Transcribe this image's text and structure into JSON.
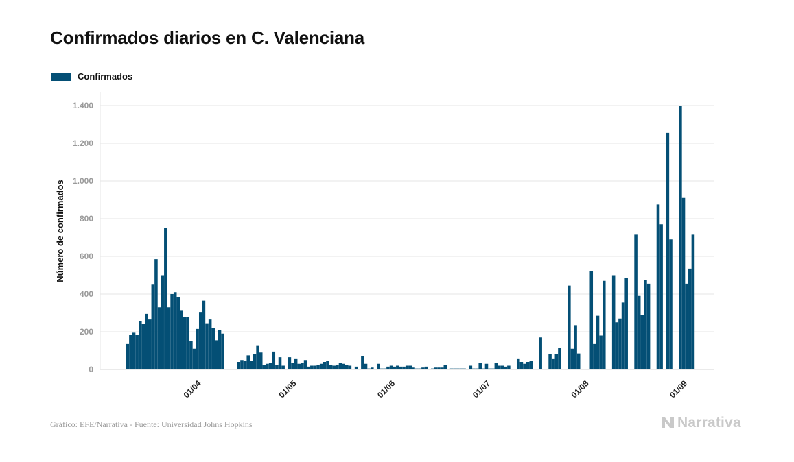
{
  "title": "Confirmados diarios en C. Valenciana",
  "legend": {
    "label": "Confirmados"
  },
  "colors": {
    "bar": "#044f75",
    "grid": "#e6e6e6",
    "brand": "#c9c9c9"
  },
  "source": "Gráfico: EFE/Narrativa - Fuente: Universidad Johns Hopkins",
  "brand": {
    "name": "Narrativa",
    "icon": "narrativa-logo-icon"
  },
  "chart_data": {
    "type": "bar",
    "title": "Confirmados diarios en C. Valenciana",
    "ylabel": "Número de confirmados",
    "xlabel": "",
    "ylim": [
      0,
      1400
    ],
    "grid": true,
    "legend_position": "top-left",
    "yticks": [
      0,
      200,
      400,
      600,
      800,
      1000,
      1200,
      1400
    ],
    "ytick_labels": [
      "0",
      "200",
      "400",
      "600",
      "800",
      "1.000",
      "1.200",
      "1.400"
    ],
    "start_date": "2020-03-10",
    "xtick_labels": [
      {
        "day": 22,
        "label": "01/04"
      },
      {
        "day": 52,
        "label": "01/05"
      },
      {
        "day": 83,
        "label": "01/06"
      },
      {
        "day": 113,
        "label": "01/07"
      },
      {
        "day": 144,
        "label": "01/08"
      },
      {
        "day": 175,
        "label": "01/09"
      }
    ],
    "series": [
      {
        "name": "Confirmados",
        "values": [
          135,
          185,
          195,
          185,
          255,
          240,
          295,
          265,
          450,
          585,
          330,
          500,
          750,
          330,
          400,
          410,
          385,
          315,
          280,
          280,
          150,
          110,
          215,
          305,
          365,
          245,
          265,
          220,
          155,
          210,
          190,
          null,
          null,
          null,
          null,
          40,
          50,
          45,
          75,
          45,
          80,
          125,
          90,
          25,
          30,
          35,
          95,
          25,
          65,
          20,
          null,
          65,
          35,
          55,
          30,
          35,
          50,
          15,
          20,
          20,
          25,
          30,
          40,
          45,
          25,
          20,
          25,
          35,
          30,
          25,
          20,
          null,
          15,
          null,
          70,
          30,
          5,
          10,
          null,
          30,
          5,
          5,
          15,
          20,
          15,
          20,
          15,
          15,
          20,
          20,
          10,
          5,
          5,
          10,
          15,
          null,
          5,
          10,
          10,
          10,
          25,
          null,
          5,
          5,
          5,
          5,
          5,
          null,
          20,
          5,
          5,
          35,
          5,
          30,
          5,
          5,
          35,
          20,
          20,
          15,
          20,
          null,
          null,
          55,
          40,
          30,
          40,
          45,
          null,
          null,
          170,
          null,
          null,
          80,
          55,
          80,
          115,
          null,
          null,
          445,
          110,
          235,
          85,
          null,
          null,
          null,
          520,
          135,
          285,
          180,
          470,
          null,
          null,
          500,
          250,
          270,
          355,
          485,
          null,
          null,
          715,
          390,
          290,
          475,
          455,
          null,
          null,
          875,
          770,
          null,
          1255,
          690,
          null,
          null,
          1400,
          910,
          455,
          535,
          715
        ]
      }
    ]
  }
}
